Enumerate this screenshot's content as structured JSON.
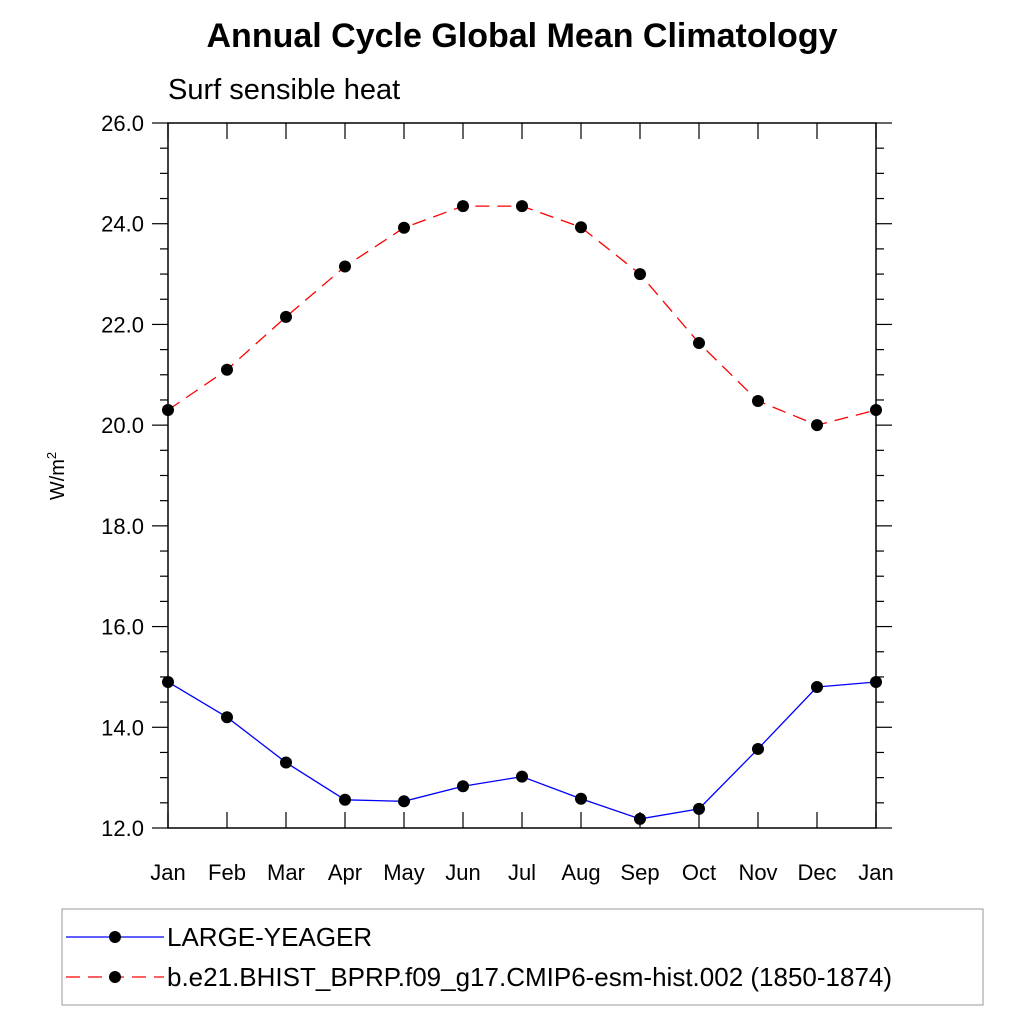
{
  "chart_data": {
    "type": "line",
    "title": "Annual Cycle Global Mean Climatology",
    "subtitle": "Surf sensible heat",
    "ylabel": "W/m",
    "ylabel_superscript": "2",
    "ylim": [
      12.0,
      26.0
    ],
    "yticks": [
      "12.0",
      "14.0",
      "16.0",
      "18.0",
      "20.0",
      "22.0",
      "24.0",
      "26.0"
    ],
    "categories": [
      "Jan",
      "Feb",
      "Mar",
      "Apr",
      "May",
      "Jun",
      "Jul",
      "Aug",
      "Sep",
      "Oct",
      "Nov",
      "Dec",
      "Jan"
    ],
    "grid": false,
    "legend_position": "bottom",
    "series": [
      {
        "name": "LARGE-YEAGER",
        "color": "#0000ff",
        "dash": "solid",
        "values": [
          14.9,
          14.2,
          13.3,
          12.56,
          12.53,
          12.83,
          13.02,
          12.58,
          12.18,
          12.38,
          13.57,
          14.8,
          14.9
        ]
      },
      {
        "name": "b.e21.BHIST_BPRP.f09_g17.CMIP6-esm-hist.002 (1850-1874)",
        "color": "#ff0000",
        "dash": "dashed",
        "values": [
          20.3,
          21.1,
          22.15,
          23.15,
          23.92,
          24.35,
          24.35,
          23.93,
          23.0,
          21.63,
          20.48,
          20.0,
          20.3
        ]
      }
    ]
  }
}
